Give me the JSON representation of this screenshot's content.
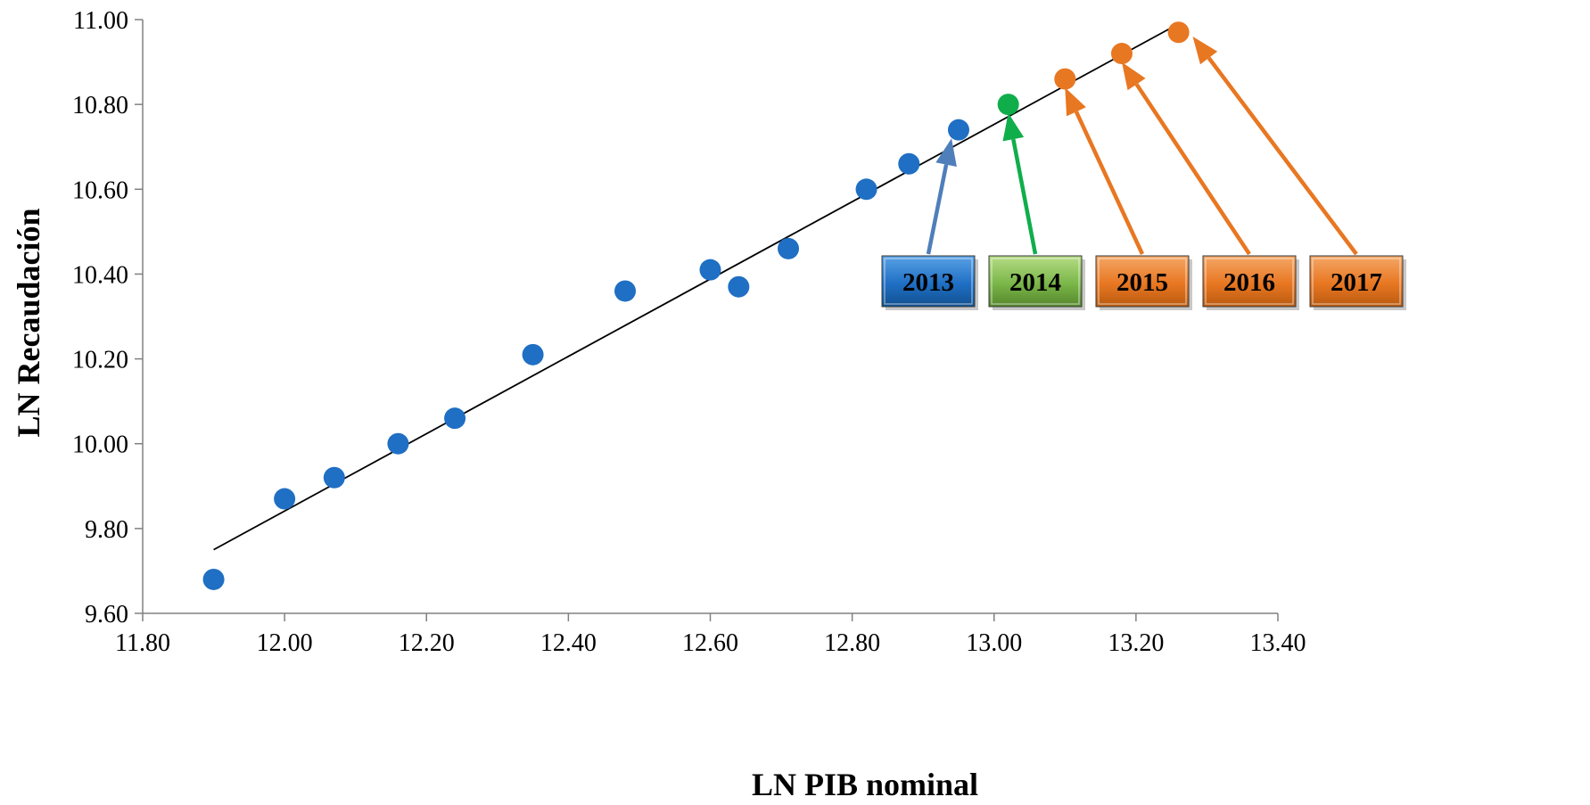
{
  "chart_data": {
    "type": "scatter",
    "title": "",
    "xlabel": "LN PIB nominal",
    "ylabel": "LN Recaudación",
    "xlim": [
      11.8,
      13.4
    ],
    "ylim": [
      9.6,
      11.0
    ],
    "x_ticks": [
      "11.80",
      "12.00",
      "12.20",
      "12.40",
      "12.60",
      "12.80",
      "13.00",
      "13.20",
      "13.40"
    ],
    "y_ticks": [
      "9.60",
      "9.80",
      "10.00",
      "10.20",
      "10.40",
      "10.60",
      "10.80",
      "11.00"
    ],
    "grid": false,
    "points": [
      {
        "x": 11.9,
        "y": 9.68,
        "color": "#1f6fc4"
      },
      {
        "x": 12.0,
        "y": 9.87,
        "color": "#1f6fc4"
      },
      {
        "x": 12.07,
        "y": 9.92,
        "color": "#1f6fc4"
      },
      {
        "x": 12.16,
        "y": 10.0,
        "color": "#1f6fc4"
      },
      {
        "x": 12.24,
        "y": 10.06,
        "color": "#1f6fc4"
      },
      {
        "x": 12.35,
        "y": 10.21,
        "color": "#1f6fc4"
      },
      {
        "x": 12.48,
        "y": 10.36,
        "color": "#1f6fc4"
      },
      {
        "x": 12.6,
        "y": 10.41,
        "color": "#1f6fc4"
      },
      {
        "x": 12.64,
        "y": 10.37,
        "color": "#1f6fc4"
      },
      {
        "x": 12.71,
        "y": 10.46,
        "color": "#1f6fc4"
      },
      {
        "x": 12.82,
        "y": 10.6,
        "color": "#1f6fc4"
      },
      {
        "x": 12.88,
        "y": 10.66,
        "color": "#1f6fc4"
      },
      {
        "x": 12.95,
        "y": 10.74,
        "color": "#1f6fc4"
      },
      {
        "x": 13.02,
        "y": 10.8,
        "color": "#0fae4b"
      },
      {
        "x": 13.1,
        "y": 10.86,
        "color": "#e87722"
      },
      {
        "x": 13.18,
        "y": 10.92,
        "color": "#e87722"
      },
      {
        "x": 13.26,
        "y": 10.97,
        "color": "#e87722"
      }
    ],
    "trendline": {
      "x": [
        11.9,
        13.26
      ],
      "y": [
        9.75,
        10.99
      ],
      "color": "#000000"
    },
    "annotations": [
      {
        "label": "2013",
        "box_color": "#1f6fc4",
        "arrow_color": "#4f7fba",
        "target": {
          "x": 12.94,
          "y": 10.72
        }
      },
      {
        "label": "2014",
        "box_color": "#7ab648",
        "arrow_color": "#0fae4b",
        "target": {
          "x": 13.02,
          "y": 10.78
        }
      },
      {
        "label": "2015",
        "box_color": "#e87722",
        "arrow_color": "#e87722",
        "target": {
          "x": 13.1,
          "y": 10.84
        }
      },
      {
        "label": "2016",
        "box_color": "#e87722",
        "arrow_color": "#e87722",
        "target": {
          "x": 13.18,
          "y": 10.9
        }
      },
      {
        "label": "2017",
        "box_color": "#e87722",
        "arrow_color": "#e87722",
        "target": {
          "x": 13.28,
          "y": 10.96
        }
      }
    ]
  }
}
